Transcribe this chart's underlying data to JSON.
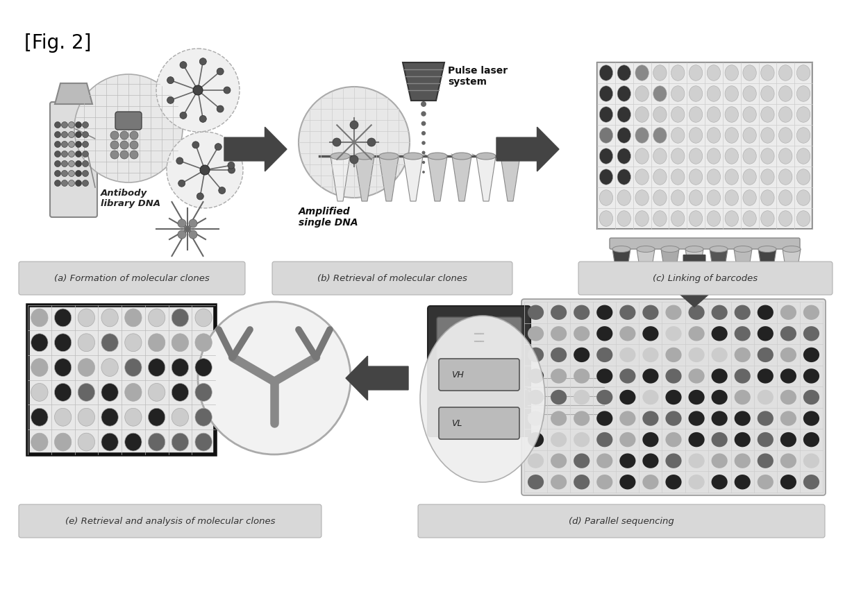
{
  "fig_label": "[Fig. 2]",
  "background_color": "#ffffff",
  "fig_label_fontsize": 20,
  "captions": {
    "a": "(a) Formation of molecular clones",
    "b": "(b) Retrieval of molecular clones",
    "c": "(c) Linking of barcodes",
    "d": "(d) Parallel sequencing",
    "e": "(e) Retrieval and analysis of molecular clones"
  },
  "arrow_color": "#555555",
  "caption_bg": "#d8d8d8",
  "caption_edge": "#aaaaaa",
  "caption_text": "#333333"
}
